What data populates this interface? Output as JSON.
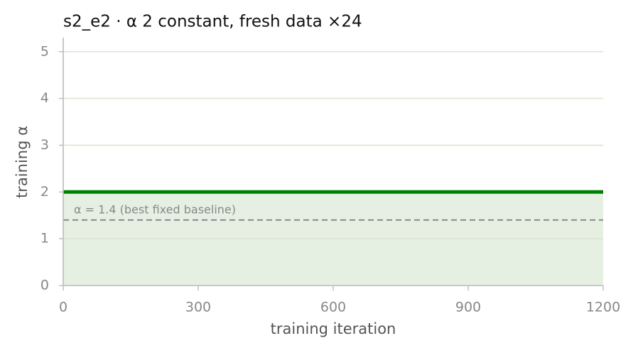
{
  "chart_data": {
    "type": "line",
    "title": "s2_e2   ·   α 2 constant, fresh data ×24",
    "x_label": "training iteration",
    "y_label": "training α",
    "x": [
      0,
      1200
    ],
    "series": [
      {
        "color": "#008000",
        "fill_color": "#e5f0e3",
        "values": [
          2,
          2
        ]
      }
    ],
    "reference_line": {
      "value": 1.4,
      "label": "α = 1.4 (best fixed baseline)",
      "color": "#888888"
    },
    "xlim": [
      0,
      1200
    ],
    "xticks": [
      0,
      300,
      600,
      900,
      1200
    ],
    "ylim": [
      0,
      5.3
    ],
    "yticks": [
      0,
      1,
      2,
      3,
      4,
      5
    ],
    "grid": true
  }
}
